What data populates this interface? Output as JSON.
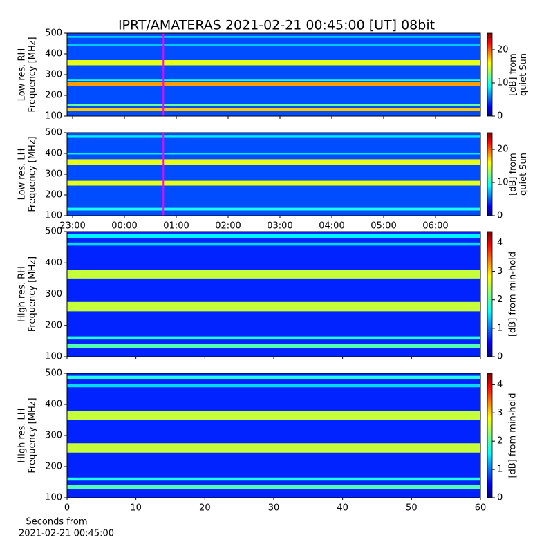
{
  "title": "IPRT/AMATERAS 2021-02-21 00:45:00 [UT]   08bit",
  "xlabel": [
    "Seconds from",
    "2021-02-21 00:45:00"
  ],
  "chart_data": [
    {
      "type": "heatmap",
      "ylabel": [
        "Low res. RH",
        "Frequency [MHz]"
      ],
      "clabel": [
        "[dB] from",
        "quiet Sun"
      ],
      "xlim": [
        -1.107,
        6.867
      ],
      "xticks": [
        -1,
        0,
        1,
        2,
        3,
        4,
        5,
        6
      ],
      "xtick_labels": false,
      "ylim": [
        100,
        500
      ],
      "yticks": [
        100,
        200,
        300,
        400,
        500
      ],
      "clim": [
        0,
        25
      ],
      "cticks": [
        0,
        10,
        20
      ],
      "background_level": 5,
      "marker": 0.75,
      "bands": [
        {
          "from": 125,
          "to": 140,
          "level": 17
        },
        {
          "from": 150,
          "to": 160,
          "level": 12
        },
        {
          "from": 245,
          "to": 265,
          "level": 18
        },
        {
          "from": 270,
          "to": 276,
          "level": 10
        },
        {
          "from": 345,
          "to": 370,
          "level": 15
        },
        {
          "from": 440,
          "to": 448,
          "level": 8
        },
        {
          "from": 478,
          "to": 486,
          "level": 9
        }
      ]
    },
    {
      "type": "heatmap",
      "ylabel": [
        "Low res. LH",
        "Frequency [MHz]"
      ],
      "clabel": [
        "[dB] from",
        "quiet Sun"
      ],
      "xlim": [
        -1.107,
        6.867
      ],
      "xticks": [
        {
          "value": -1,
          "label": "23:00"
        },
        {
          "value": 0,
          "label": "00:00"
        },
        {
          "value": 1,
          "label": "01:00"
        },
        {
          "value": 2,
          "label": "02:00"
        },
        {
          "value": 3,
          "label": "03:00"
        },
        {
          "value": 4,
          "label": "04:00"
        },
        {
          "value": 5,
          "label": "05:00"
        },
        {
          "value": 6,
          "label": "06:00"
        }
      ],
      "xtick_labels": true,
      "ylim": [
        100,
        500
      ],
      "yticks": [
        100,
        200,
        300,
        400,
        500
      ],
      "clim": [
        0,
        25
      ],
      "cticks": [
        0,
        10,
        20
      ],
      "background_level": 5,
      "marker": 0.75,
      "bands": [
        {
          "from": 125,
          "to": 138,
          "level": 10
        },
        {
          "from": 245,
          "to": 268,
          "level": 15
        },
        {
          "from": 345,
          "to": 372,
          "level": 15
        },
        {
          "from": 395,
          "to": 402,
          "level": 9
        },
        {
          "from": 478,
          "to": 486,
          "level": 9
        }
      ]
    },
    {
      "type": "heatmap",
      "ylabel": [
        "High res. RH",
        "Frequency [MHz]"
      ],
      "clabel": [
        "[dB] from min-hold"
      ],
      "xlim": [
        0,
        60
      ],
      "xticks": [
        0,
        10,
        20,
        30,
        40,
        50,
        60
      ],
      "xtick_labels": false,
      "ylim": [
        100,
        500
      ],
      "yticks": [
        100,
        200,
        300,
        400,
        500
      ],
      "clim": [
        0,
        4.4
      ],
      "cticks": [
        0,
        1,
        2,
        3,
        4
      ],
      "background_level": 0.7,
      "bands": [
        {
          "from": 128,
          "to": 142,
          "level": 2
        },
        {
          "from": 155,
          "to": 165,
          "level": 1.8
        },
        {
          "from": 245,
          "to": 275,
          "level": 2.5
        },
        {
          "from": 350,
          "to": 378,
          "level": 2.5
        },
        {
          "from": 455,
          "to": 465,
          "level": 1.5
        },
        {
          "from": 480,
          "to": 492,
          "level": 1.6
        }
      ]
    },
    {
      "type": "heatmap",
      "ylabel": [
        "High res. LH",
        "Frequency [MHz]"
      ],
      "clabel": [
        "[dB] from min-hold"
      ],
      "xlim": [
        0,
        60
      ],
      "xticks": [
        0,
        10,
        20,
        30,
        40,
        50,
        60
      ],
      "xtick_labels": true,
      "ylim": [
        100,
        500
      ],
      "yticks": [
        100,
        200,
        300,
        400,
        500
      ],
      "clim": [
        0,
        4.4
      ],
      "cticks": [
        0,
        1,
        2,
        3,
        4
      ],
      "background_level": 0.7,
      "bands": [
        {
          "from": 128,
          "to": 142,
          "level": 2
        },
        {
          "from": 155,
          "to": 165,
          "level": 1.8
        },
        {
          "from": 245,
          "to": 275,
          "level": 2.5
        },
        {
          "from": 350,
          "to": 378,
          "level": 2.5
        },
        {
          "from": 455,
          "to": 465,
          "level": 1.5
        },
        {
          "from": 480,
          "to": 492,
          "level": 1.8
        }
      ]
    }
  ]
}
